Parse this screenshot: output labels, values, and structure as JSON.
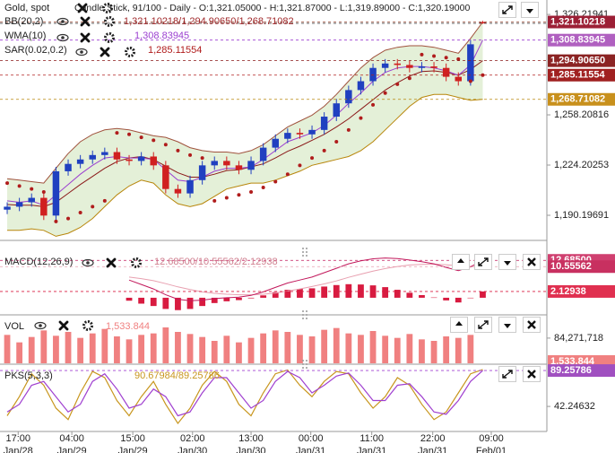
{
  "header": {
    "symbol": "Gold, spot",
    "info": "Candle Stick, 91/100 - Daily - O:1,321.05000 - H:1,321.87000 - L:1,319.89000 - C:1,320.19000"
  },
  "chart_data": [
    {
      "type": "candlestick",
      "open": [
        1194,
        1196,
        1199,
        1202,
        1190,
        1220,
        1225,
        1228,
        1231,
        1233,
        1228,
        1227,
        1230,
        1224,
        1208,
        1205,
        1214,
        1224,
        1227,
        1224,
        1221,
        1227,
        1236,
        1242,
        1246,
        1245,
        1248,
        1257,
        1266,
        1275,
        1281,
        1290,
        1293,
        1292,
        1290,
        1291,
        1290,
        1284,
        1281,
        1321.05
      ],
      "high": [
        1199,
        1202,
        1205,
        1205,
        1223,
        1228,
        1231,
        1234,
        1236,
        1236,
        1231,
        1233,
        1233,
        1227,
        1211,
        1217,
        1227,
        1230,
        1230,
        1227,
        1230,
        1239,
        1245,
        1249,
        1249,
        1251,
        1260,
        1269,
        1278,
        1284,
        1293,
        1296,
        1296,
        1295,
        1294,
        1294,
        1293,
        1287,
        1309,
        1321.87
      ],
      "low": [
        1191,
        1193,
        1196,
        1187,
        1187,
        1217,
        1222,
        1225,
        1228,
        1225,
        1224,
        1224,
        1221,
        1205,
        1202,
        1202,
        1211,
        1221,
        1221,
        1218,
        1218,
        1224,
        1233,
        1239,
        1242,
        1242,
        1245,
        1254,
        1263,
        1272,
        1278,
        1287,
        1289,
        1287,
        1287,
        1287,
        1281,
        1278,
        1278,
        1319.89
      ],
      "close": [
        1196,
        1199,
        1202,
        1190,
        1220,
        1225,
        1228,
        1231,
        1233,
        1228,
        1227,
        1230,
        1224,
        1208,
        1205,
        1214,
        1224,
        1227,
        1224,
        1221,
        1227,
        1236,
        1242,
        1246,
        1245,
        1248,
        1257,
        1266,
        1275,
        1281,
        1290,
        1293,
        1292,
        1290,
        1291,
        1290,
        1284,
        1281,
        1306,
        1320.19
      ],
      "up_color": "#2040c0",
      "down_color": "#d02020",
      "xlim": [
        -0.59,
        44.26
      ],
      "ylim": [
        1175,
        1336
      ],
      "yticks": [
        {
          "value": 1326.21941,
          "label": "1,326.21941"
        },
        {
          "value": 1258.20816,
          "label": "1,258.20816"
        },
        {
          "value": 1224.20253,
          "label": "1,224.20253"
        },
        {
          "value": 1190.19691,
          "label": "1,190.19691"
        }
      ],
      "indicators": [
        {
          "name": "BB(20,2)",
          "value_text": "1,321.10218/1,294.90650/1,268.71082",
          "color": "#a0282a",
          "fill": "#e4f0d8",
          "bands": [
            {
              "values": [
                1215,
                1214,
                1213,
                1212,
                1222,
                1232,
                1240,
                1245,
                1248,
                1249,
                1248,
                1246,
                1244,
                1243,
                1240,
                1236,
                1234,
                1233,
                1233,
                1232,
                1234,
                1238,
                1244,
                1250,
                1254,
                1258,
                1264,
                1272,
                1281,
                1290,
                1297,
                1302,
                1304,
                1305,
                1305,
                1304,
                1302,
                1300,
                1310,
                1321.10218
              ],
              "color": "#a0523d",
              "value_label": "1,321.10218",
              "label_color": "#9c1f35"
            },
            {
              "values": [
                1197.5,
                1197,
                1197,
                1196,
                1199,
                1205,
                1211,
                1216.5,
                1222,
                1226.5,
                1229,
                1230,
                1228,
                1223.5,
                1219,
                1216,
                1216,
                1218,
                1220.5,
                1221,
                1223,
                1225,
                1229,
                1233.5,
                1237,
                1241,
                1245,
                1250,
                1255.5,
                1262,
                1268.5,
                1275,
                1280,
                1284.5,
                1287.5,
                1288,
                1287,
                1285,
                1289,
                1294.9065
              ],
              "color": "#8b1a1a",
              "value_label": "1,294.90650",
              "label_color": "#8b2323"
            },
            {
              "values": [
                1180,
                1180,
                1181,
                1180,
                1176,
                1178,
                1182,
                1188,
                1196,
                1204,
                1210,
                1214,
                1212,
                1204,
                1198,
                1196,
                1198,
                1203,
                1208,
                1210,
                1212,
                1212,
                1214,
                1217,
                1220,
                1224,
                1226,
                1228,
                1230,
                1234,
                1240,
                1248,
                1256,
                1264,
                1270,
                1272,
                1272,
                1270,
                1268,
                1268.71082
              ],
              "color": "#b8860b",
              "value_label": "1,268.71082",
              "label_color": "#c8901c"
            }
          ]
        },
        {
          "name": "WMA(10)",
          "value_text": "1,308.83945",
          "color": "#9b3fd0",
          "style": "line",
          "values": [
            1200,
            1199,
            1200,
            1197,
            1204,
            1211,
            1218,
            1224,
            1229,
            1230,
            1229,
            1229,
            1228,
            1221,
            1214,
            1213,
            1216,
            1220,
            1222,
            1222,
            1223,
            1228,
            1234,
            1240,
            1243,
            1246,
            1251,
            1258,
            1266,
            1273,
            1281,
            1287,
            1290,
            1291,
            1291,
            1290,
            1288,
            1285,
            1292,
            1308.83945
          ],
          "value_label": "1,308.83945",
          "label_color": "#b060c0"
        },
        {
          "name": "SAR(0.02,0.2)",
          "value_text": "1,285.11554",
          "color": "#b01c1c",
          "style": "dots",
          "values": [
            1212,
            1210,
            1208,
            1206,
            1186,
            1188,
            1192,
            1196,
            1200,
            1246,
            1245,
            1243,
            1241,
            1238,
            1234,
            1231,
            1229,
            1200,
            1202,
            1204,
            1206,
            1209,
            1213,
            1218,
            1224,
            1229,
            1234,
            1240,
            1248,
            1256,
            1265,
            1273,
            1279,
            1283,
            1299,
            1298,
            1297,
            1296,
            1281,
            1285.11554
          ],
          "value_label": "1,285.11554",
          "label_color": "#a02020"
        }
      ]
    },
    {
      "type": "macd",
      "name": "MACD(12,26,9)",
      "value_text": "12.68500/10.55562/2.12938",
      "text_color": "#d08090",
      "xlim": [
        -0.59,
        44.26
      ],
      "ylim": [
        -5.5,
        15.8
      ],
      "macd": {
        "values": [
          null,
          null,
          null,
          null,
          null,
          null,
          null,
          null,
          null,
          null,
          6,
          4.5,
          3,
          1,
          -0.5,
          -1,
          -0.8,
          -0.3,
          0,
          0.2,
          0.8,
          2,
          3.5,
          5,
          6,
          7,
          8.5,
          10,
          11.5,
          12.5,
          13.2,
          13.5,
          13.3,
          12.8,
          12.2,
          11.5,
          10.3,
          9.2,
          10.5,
          12.685
        ],
        "color": "#c2185b",
        "value_label": "12.68500",
        "label_color": "#d04070"
      },
      "signal": {
        "values": [
          null,
          null,
          null,
          null,
          null,
          null,
          null,
          null,
          null,
          null,
          7,
          6.5,
          5.8,
          4.8,
          3.7,
          2.8,
          2,
          1.5,
          1.2,
          1,
          1,
          1.2,
          1.6,
          2.3,
          3,
          3.8,
          4.7,
          5.7,
          6.9,
          8,
          9,
          9.9,
          10.6,
          11.1,
          11.3,
          11.4,
          11.2,
          10.8,
          10.6,
          10.55562
        ],
        "color": "#e8a0b0",
        "value_label": "10.55562",
        "label_color": "#c83060"
      },
      "histogram": {
        "values": [
          null,
          null,
          null,
          null,
          null,
          null,
          null,
          null,
          null,
          null,
          -1,
          -2,
          -2.8,
          -3.8,
          -4.2,
          -3.8,
          -2.8,
          -1.8,
          -1.2,
          -0.8,
          -0.2,
          0.8,
          1.9,
          2.7,
          3,
          3.2,
          3.8,
          4.3,
          4.6,
          4.5,
          4.2,
          3.6,
          2.7,
          1.7,
          0.9,
          0.1,
          -0.9,
          -1.6,
          -0.1,
          2.12938
        ],
        "color": "#d81b40",
        "value_label": "2.12938",
        "label_color": "#e03050"
      }
    },
    {
      "type": "bar",
      "name": "VOL",
      "value_text": "1,533.844",
      "text_color": "#f08080",
      "color": "#f08080",
      "xlim": [
        -0.59,
        44.26
      ],
      "ylim": [
        0,
        159000000
      ],
      "yticks": [
        {
          "value": 84271718,
          "label": "84,271,718"
        }
      ],
      "values": [
        95000000,
        70000000,
        88000000,
        110000000,
        92000000,
        105000000,
        85000000,
        100000000,
        115000000,
        90000000,
        80000000,
        95000000,
        100000000,
        120000000,
        105000000,
        98000000,
        88000000,
        75000000,
        92000000,
        70000000,
        85000000,
        100000000,
        110000000,
        105000000,
        95000000,
        90000000,
        112000000,
        118000000,
        100000000,
        95000000,
        108000000,
        92000000,
        85000000,
        98000000,
        80000000,
        75000000,
        90000000,
        85000000,
        95000000,
        1533.844
      ],
      "value_label": "1,533.844",
      "label_color": "#f08080"
    },
    {
      "type": "stochastic",
      "name": "PKS(5,3,3)",
      "value_text": "90.67984/89.25786",
      "text_color": "#c8961e",
      "xlim": [
        -0.59,
        44.26
      ],
      "ylim": [
        10.6,
        96.4
      ],
      "yticks": [
        {
          "value": 42.24632,
          "label": "42.24632"
        }
      ],
      "xticks": [
        {
          "value": 0.9,
          "label": "17:00\nJan/28"
        },
        {
          "value": 5.3,
          "label": "04:00\nJan/29"
        },
        {
          "value": 10.3,
          "label": "15:00\nJan/29"
        },
        {
          "value": 15.2,
          "label": "02:00\nJan/30"
        },
        {
          "value": 20,
          "label": "13:00\nJan/30"
        },
        {
          "value": 24.9,
          "label": "00:00\nJan/31"
        },
        {
          "value": 29.9,
          "label": "11:00\nJan/31"
        },
        {
          "value": 34.9,
          "label": "22:00\nJan/31"
        },
        {
          "value": 39.7,
          "label": "09:00\nFeb/01"
        }
      ],
      "k": {
        "values": [
          30,
          55,
          85,
          70,
          40,
          25,
          60,
          88,
          80,
          50,
          30,
          55,
          75,
          45,
          20,
          40,
          70,
          88,
          75,
          45,
          30,
          60,
          85,
          90,
          70,
          55,
          75,
          88,
          85,
          60,
          40,
          55,
          80,
          70,
          45,
          25,
          35,
          60,
          85,
          90.67984
        ],
        "color": "#c8961e"
      },
      "d": {
        "values": [
          35,
          45,
          70,
          75,
          55,
          35,
          45,
          75,
          85,
          65,
          40,
          45,
          65,
          55,
          30,
          35,
          60,
          80,
          80,
          60,
          40,
          50,
          75,
          88,
          80,
          60,
          70,
          82,
          86,
          70,
          50,
          50,
          70,
          72,
          55,
          35,
          32,
          50,
          75,
          89.25786
        ],
        "color": "#a040d0",
        "value_label": "89.25786",
        "label_color": "#a050c0"
      }
    }
  ]
}
